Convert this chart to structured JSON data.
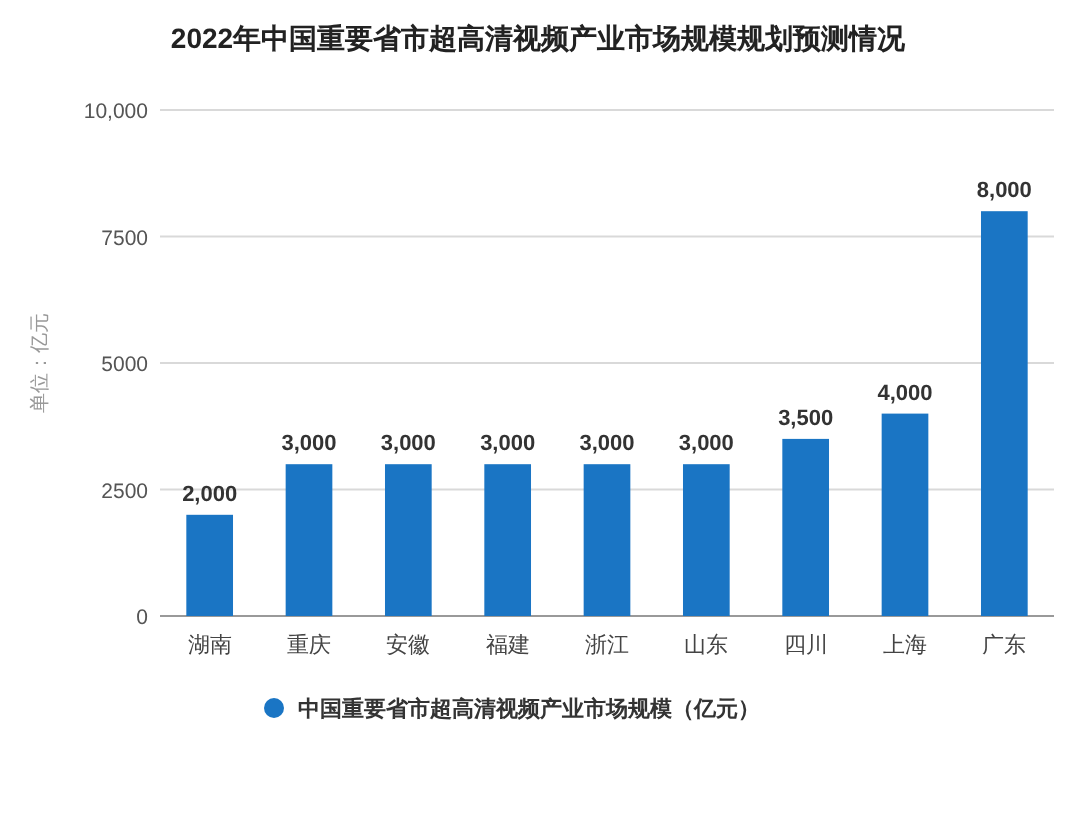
{
  "chart_data": {
    "type": "bar",
    "title": "2022年中国重要省市超高清视频产业市场规模规划预测情况",
    "ylabel": "单位：亿元",
    "categories": [
      "湖南",
      "重庆",
      "安徽",
      "福建",
      "浙江",
      "山东",
      "四川",
      "上海",
      "广东"
    ],
    "series": [
      {
        "name": "中国重要省市超高清视频产业市场规模（亿元）",
        "color": "#1a75c4",
        "values": [
          2000,
          3000,
          3000,
          3000,
          3000,
          3000,
          3500,
          4000,
          8000
        ],
        "value_labels": [
          "2,000",
          "3,000",
          "3,000",
          "3,000",
          "3,000",
          "3,000",
          "3,500",
          "4,000",
          "8,000"
        ]
      }
    ],
    "ylim": [
      0,
      10000
    ],
    "yticks": [
      {
        "value": 0,
        "label": "0"
      },
      {
        "value": 2500,
        "label": "2500"
      },
      {
        "value": 5000,
        "label": "5000"
      },
      {
        "value": 7500,
        "label": "7500"
      },
      {
        "value": 10000,
        "label": "10,000"
      }
    ],
    "grid": "y",
    "legend": "bottom"
  }
}
